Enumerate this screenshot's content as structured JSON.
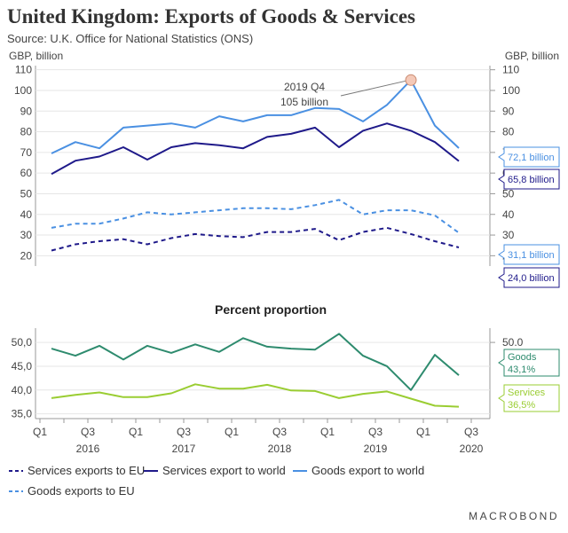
{
  "header": {
    "title": "United Kingdom: Exports of Goods & Services",
    "subtitle": "Source: U.K. Office for National Statistics (ONS)"
  },
  "brand": "MACROBOND",
  "chart_data": [
    {
      "type": "line",
      "ylabel_left": "GBP, billion",
      "ylabel_right": "GBP, billion",
      "ylim": [
        15,
        112
      ],
      "yticks": [
        20,
        30,
        40,
        50,
        60,
        70,
        80,
        90,
        100,
        110
      ],
      "x": [
        "2016Q1",
        "2016Q2",
        "2016Q3",
        "2016Q4",
        "2017Q1",
        "2017Q2",
        "2017Q3",
        "2017Q4",
        "2018Q1",
        "2018Q2",
        "2018Q3",
        "2018Q4",
        "2019Q1",
        "2019Q2",
        "2019Q3",
        "2019Q4",
        "2020Q1",
        "2020Q2"
      ],
      "series": [
        {
          "name": "Goods export to world",
          "color": "#4a90e2",
          "dash": "solid",
          "values": [
            69.5,
            75,
            72,
            82,
            83,
            84,
            82,
            87.5,
            85,
            88,
            88,
            91.5,
            91,
            85,
            93,
            105,
            83,
            72.1
          ]
        },
        {
          "name": "Services export to world",
          "color": "#1f1a8a",
          "dash": "solid",
          "values": [
            59.5,
            66,
            68,
            72.5,
            66.5,
            72.5,
            74.5,
            73.5,
            72,
            77.5,
            79,
            82,
            72.5,
            80.5,
            84,
            80.5,
            75,
            65.8
          ]
        },
        {
          "name": "Goods exports to EU",
          "color": "#4a90e2",
          "dash": "dashed",
          "values": [
            33.5,
            35.5,
            35.5,
            38,
            41,
            40,
            41,
            42,
            43,
            43,
            42.5,
            44.5,
            47,
            40,
            42,
            42,
            39.5,
            31.1
          ]
        },
        {
          "name": "Services exports to EU",
          "color": "#1f1a8a",
          "dash": "dashed",
          "values": [
            22.5,
            25.5,
            27,
            28,
            25.5,
            28.5,
            30.5,
            29.5,
            29,
            31.5,
            31.5,
            33,
            27.5,
            31.5,
            33.5,
            30.5,
            27,
            24.0
          ]
        }
      ],
      "highlight": {
        "x": "2019Q4",
        "value": 105,
        "label_line1": "2019 Q4",
        "label_line2": "105 billion"
      },
      "end_labels": [
        "72,1 billion",
        "65,8 billion",
        "31,1 billion",
        "24,0 billion"
      ]
    },
    {
      "type": "line",
      "title": "Percent proportion",
      "ylim": [
        34,
        53
      ],
      "yticks_left": [
        "35,0",
        "40,0",
        "45,0",
        "50,0"
      ],
      "ytick_values": [
        35,
        40,
        45,
        50
      ],
      "ytick_right": "50.0",
      "x": [
        "2016Q1",
        "2016Q2",
        "2016Q3",
        "2016Q4",
        "2017Q1",
        "2017Q2",
        "2017Q3",
        "2017Q4",
        "2018Q1",
        "2018Q2",
        "2018Q3",
        "2018Q4",
        "2019Q1",
        "2019Q2",
        "2019Q3",
        "2019Q4",
        "2020Q1",
        "2020Q2"
      ],
      "series": [
        {
          "name": "Goods",
          "color": "#2e8b6e",
          "values": [
            48.7,
            47.2,
            49.3,
            46.4,
            49.3,
            47.8,
            49.6,
            48,
            50.9,
            49.1,
            48.7,
            48.5,
            51.8,
            47.2,
            45,
            40,
            47.4,
            43.1
          ]
        },
        {
          "name": "Services",
          "color": "#9acd32",
          "values": [
            38.3,
            39,
            39.5,
            38.5,
            38.5,
            39.3,
            41.2,
            40.3,
            40.3,
            41.1,
            39.9,
            39.8,
            38.3,
            39.2,
            39.7,
            38.2,
            36.7,
            36.5
          ]
        }
      ],
      "end_labels": [
        {
          "line1": "Goods",
          "line2": "43,1%"
        },
        {
          "line1": "Services",
          "line2": "36,5%"
        }
      ]
    }
  ],
  "x_axis": {
    "quarter_labels": [
      "Q1",
      "Q3",
      "Q1",
      "Q3",
      "Q1",
      "Q3",
      "Q1",
      "Q3",
      "Q1",
      "Q3"
    ],
    "years": [
      "2016",
      "2017",
      "2018",
      "2019",
      "2020"
    ]
  },
  "legend": [
    {
      "label": "Services exports to EU",
      "color": "#1f1a8a",
      "dash": "dashed"
    },
    {
      "label": "Services export to world",
      "color": "#1f1a8a",
      "dash": "solid"
    },
    {
      "label": "Goods export to world",
      "color": "#4a90e2",
      "dash": "solid"
    },
    {
      "label": "Goods exports to EU",
      "color": "#4a90e2",
      "dash": "dashed"
    }
  ]
}
